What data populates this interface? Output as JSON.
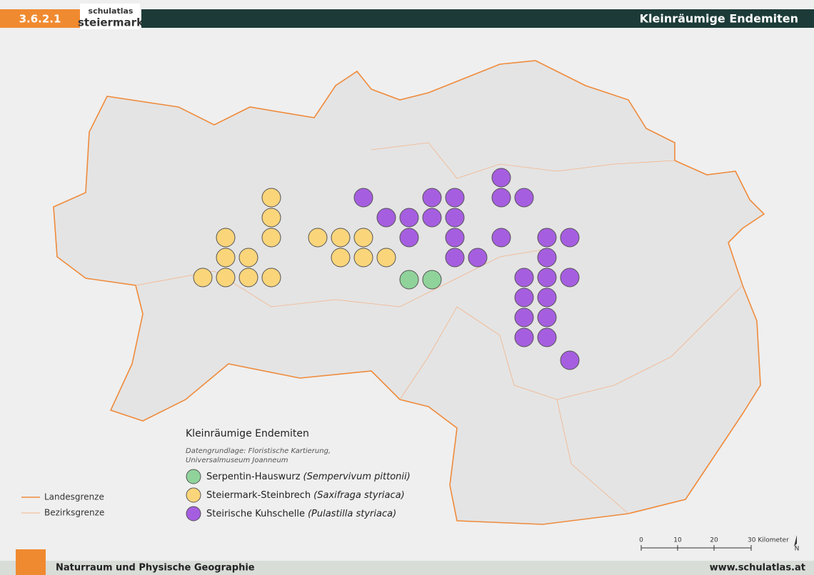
{
  "header": {
    "code": "3.6.2.1",
    "logo_top": "schulatlas",
    "logo_bottom": "steiermark",
    "title": "Kleinräumige Endemiten"
  },
  "legend": {
    "title": "Kleinräumige Endemiten",
    "source": [
      "Datengrundlage: Floristische Kartierung,",
      "Universalmuseum Joanneum"
    ],
    "items": [
      {
        "name": "Serpentin-Hauswurz",
        "latin": "(Sempervivum pittonii)"
      },
      {
        "name": "Steiermark-Steinbrech",
        "latin": "(Saxifraga styriaca)"
      },
      {
        "name": "Steirische Kuhschelle",
        "latin": "(Pulastilla styriaca)"
      }
    ]
  },
  "boundaries": [
    "Landesgrenze",
    "Bezirksgrenze"
  ],
  "scale": {
    "labels": [
      "0",
      "10",
      "20",
      "30 Kilometer"
    ],
    "north": "N"
  },
  "footer": {
    "left": "Naturraum und Physische Geographie",
    "right": "www.schulatlas.at"
  }
}
